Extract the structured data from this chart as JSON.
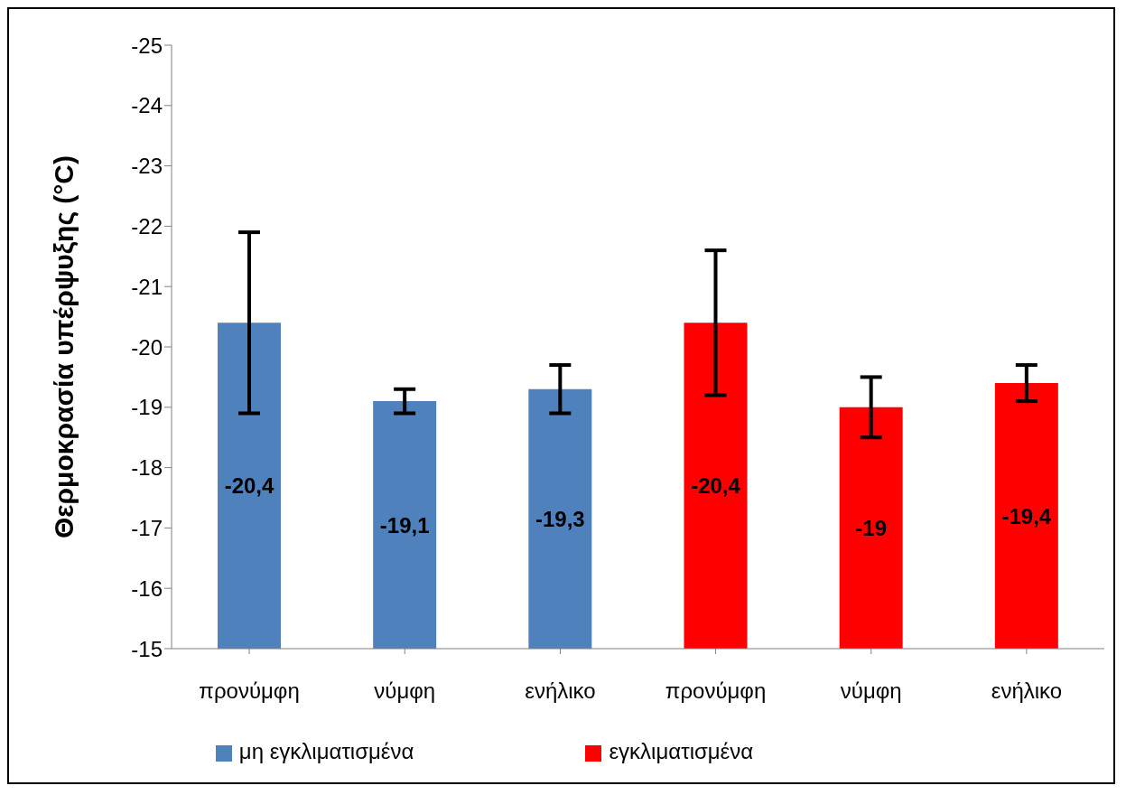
{
  "chart_data": {
    "type": "bar",
    "ylabel": "Θερμοκρασία υπέρψυξης (°C)",
    "categories": [
      "προνύμφη",
      "νύμφη",
      "ενήλικο",
      "προνύμφη",
      "νύμφη",
      "ενήλικο"
    ],
    "series": [
      {
        "name": "μη εγκλιματισμένα",
        "color": "#4f81bd",
        "values": [
          -20.4,
          -19.1,
          -19.3,
          null,
          null,
          null
        ],
        "errors": [
          1.5,
          0.2,
          0.4,
          null,
          null,
          null
        ],
        "value_labels": [
          "-20,4",
          "-19,1",
          "-19,3",
          null,
          null,
          null
        ]
      },
      {
        "name": "εγκλιματισμένα",
        "color": "#ff0000",
        "values": [
          null,
          null,
          null,
          -20.4,
          -19,
          -19.4
        ],
        "errors": [
          null,
          null,
          null,
          1.2,
          0.5,
          0.3
        ],
        "value_labels": [
          null,
          null,
          null,
          "-20,4",
          "-19",
          "-19,4"
        ]
      }
    ],
    "ylim": [
      -15,
      -25
    ],
    "yticks": [
      -15,
      -16,
      -17,
      -18,
      -19,
      -20,
      -21,
      -22,
      -23,
      -24,
      -25
    ],
    "grid": false,
    "legend": "bottom"
  }
}
